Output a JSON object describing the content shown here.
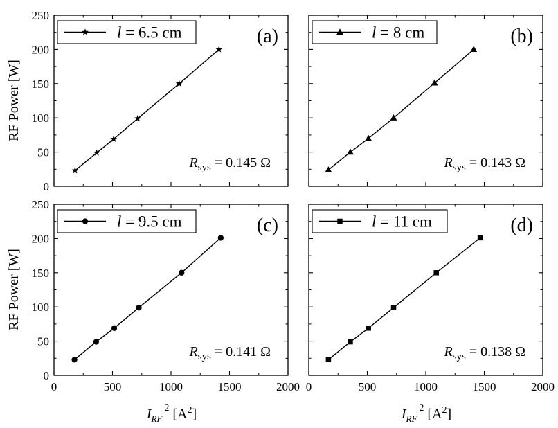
{
  "chart_data": [
    {
      "type": "line",
      "panel_label": "(a)",
      "marker": "star",
      "series": [
        {
          "name": "l = 6.5 cm",
          "x": [
            180,
            365,
            510,
            715,
            1070,
            1410
          ],
          "y": [
            23,
            49,
            69,
            99,
            150,
            200
          ]
        }
      ],
      "legend": {
        "var": "l",
        "rest": " = 6.5 cm"
      },
      "annotation": {
        "symbol": "R",
        "sub": "sys",
        "rest": " = 0.145 Ω"
      },
      "xlim": [
        0,
        2000
      ],
      "ylim": [
        0,
        250
      ]
    },
    {
      "type": "line",
      "panel_label": "(b)",
      "marker": "triangle",
      "series": [
        {
          "name": "l = 8 cm",
          "x": [
            168,
            355,
            510,
            725,
            1075,
            1410
          ],
          "y": [
            24,
            50,
            70,
            100,
            151,
            200
          ]
        }
      ],
      "legend": {
        "var": "l",
        "rest": " = 8 cm"
      },
      "annotation": {
        "symbol": "R",
        "sub": "sys",
        "rest": " = 0.143 Ω"
      },
      "xlim": [
        0,
        2000
      ],
      "ylim": [
        0,
        250
      ]
    },
    {
      "type": "line",
      "panel_label": "(c)",
      "marker": "circle",
      "series": [
        {
          "name": "l = 9.5 cm",
          "x": [
            175,
            360,
            515,
            725,
            1090,
            1425
          ],
          "y": [
            23,
            49,
            69,
            99,
            150,
            201
          ]
        }
      ],
      "legend": {
        "var": "l",
        "rest": " = 9.5 cm"
      },
      "annotation": {
        "symbol": "R",
        "sub": "sys",
        "rest": " = 0.141 Ω"
      },
      "xlim": [
        0,
        2000
      ],
      "ylim": [
        0,
        250
      ]
    },
    {
      "type": "line",
      "panel_label": "(d)",
      "marker": "square",
      "series": [
        {
          "name": "l = 11 cm",
          "x": [
            168,
            355,
            510,
            725,
            1090,
            1465
          ],
          "y": [
            23,
            49,
            69,
            99,
            150,
            201
          ]
        }
      ],
      "legend": {
        "var": "l",
        "rest": " = 11 cm"
      },
      "annotation": {
        "symbol": "R",
        "sub": "sys",
        "rest": " = 0.138 Ω"
      },
      "xlim": [
        0,
        2000
      ],
      "ylim": [
        0,
        250
      ]
    }
  ],
  "axes": {
    "ylabel": "RF Power [W]",
    "xlabel": {
      "main": "I",
      "sub": "RF",
      "sup": "2",
      "unit": " [A",
      "unit_sup": "2",
      "unit_close": "]"
    },
    "xticks": [
      "0",
      "500",
      "1000",
      "1500",
      "2000"
    ],
    "yticks": [
      "0",
      "50",
      "100",
      "150",
      "200",
      "250"
    ]
  }
}
